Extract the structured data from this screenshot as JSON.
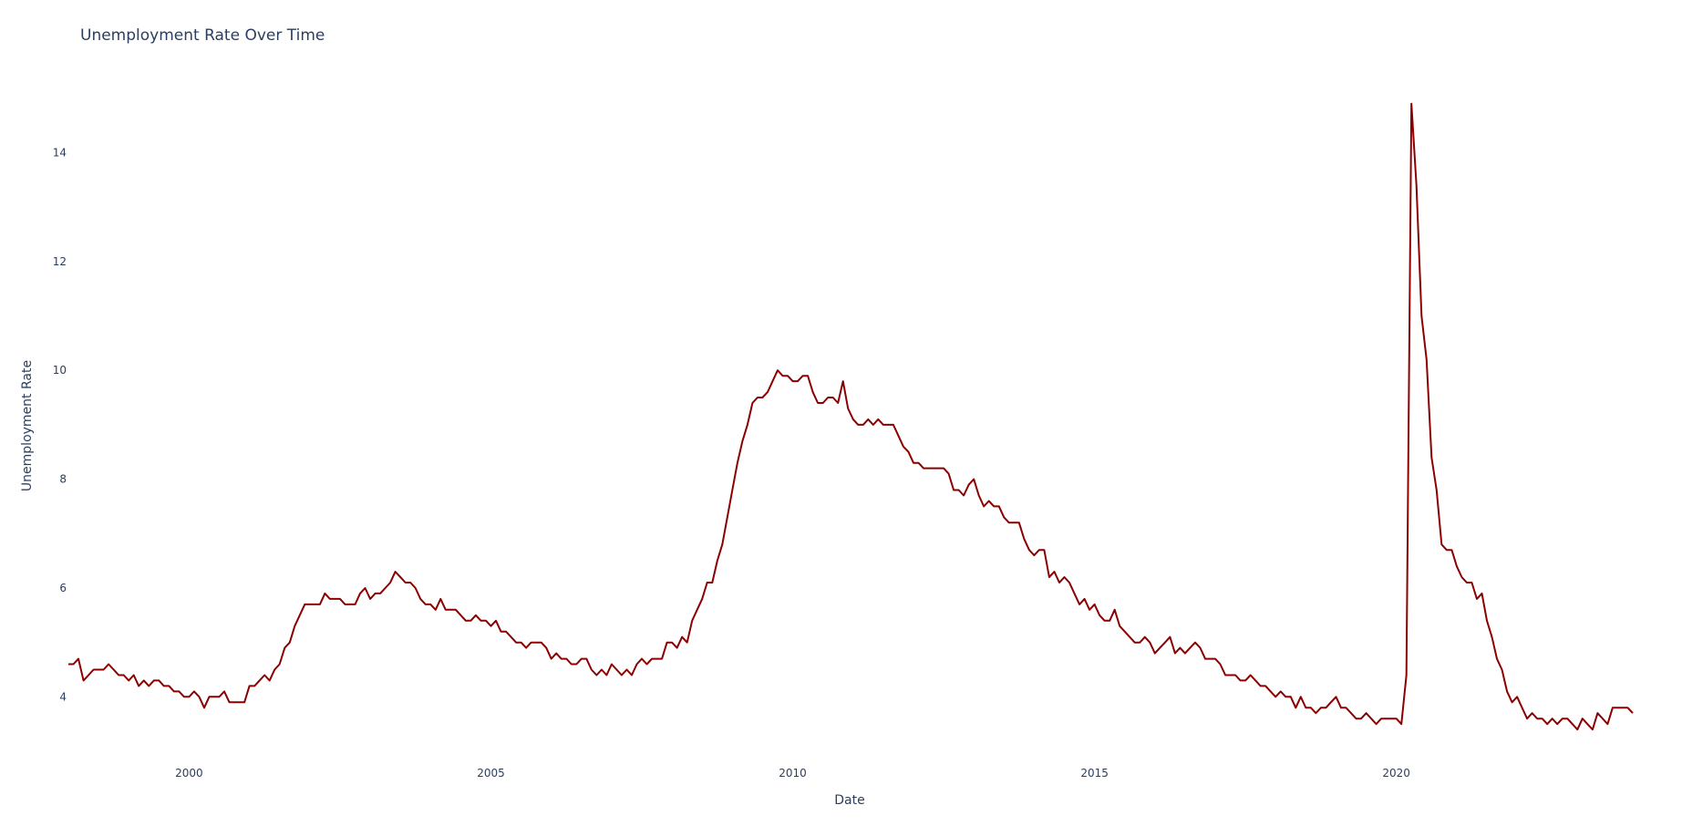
{
  "chart_data": {
    "type": "line",
    "title": "Unemployment Rate Over Time",
    "xlabel": "Date",
    "ylabel": "Unemployment Rate",
    "x_range": [
      "1998-01",
      "2023-12"
    ],
    "ylim": [
      2.9,
      15.8
    ],
    "x_ticks": [
      "2000",
      "2005",
      "2010",
      "2015",
      "2020"
    ],
    "y_ticks": [
      "4",
      "6",
      "8",
      "10",
      "12",
      "14"
    ],
    "grid": false,
    "line_color": "#8b0000",
    "series": [
      {
        "x": [
          "1998-01",
          "1998-02",
          "1998-03",
          "1998-04",
          "1998-05",
          "1998-06",
          "1998-07",
          "1998-08",
          "1998-09",
          "1998-10",
          "1998-11",
          "1998-12",
          "1999-01",
          "1999-02",
          "1999-03",
          "1999-04",
          "1999-05",
          "1999-06",
          "1999-07",
          "1999-08",
          "1999-09",
          "1999-10",
          "1999-11",
          "1999-12",
          "2000-01",
          "2000-02",
          "2000-03",
          "2000-04",
          "2000-05",
          "2000-06",
          "2000-07",
          "2000-08",
          "2000-09",
          "2000-10",
          "2000-11",
          "2000-12",
          "2001-01",
          "2001-02",
          "2001-03",
          "2001-04",
          "2001-05",
          "2001-06",
          "2001-07",
          "2001-08",
          "2001-09",
          "2001-10",
          "2001-11",
          "2001-12",
          "2002-01",
          "2002-02",
          "2002-03",
          "2002-04",
          "2002-05",
          "2002-06",
          "2002-07",
          "2002-08",
          "2002-09",
          "2002-10",
          "2002-11",
          "2002-12",
          "2003-01",
          "2003-02",
          "2003-03",
          "2003-04",
          "2003-05",
          "2003-06",
          "2003-07",
          "2003-08",
          "2003-09",
          "2003-10",
          "2003-11",
          "2003-12",
          "2004-01",
          "2004-02",
          "2004-03",
          "2004-04",
          "2004-05",
          "2004-06",
          "2004-07",
          "2004-08",
          "2004-09",
          "2004-10",
          "2004-11",
          "2004-12",
          "2005-01",
          "2005-02",
          "2005-03",
          "2005-04",
          "2005-05",
          "2005-06",
          "2005-07",
          "2005-08",
          "2005-09",
          "2005-10",
          "2005-11",
          "2005-12",
          "2006-01",
          "2006-02",
          "2006-03",
          "2006-04",
          "2006-05",
          "2006-06",
          "2006-07",
          "2006-08",
          "2006-09",
          "2006-10",
          "2006-11",
          "2006-12",
          "2007-01",
          "2007-02",
          "2007-03",
          "2007-04",
          "2007-05",
          "2007-06",
          "2007-07",
          "2007-08",
          "2007-09",
          "2007-10",
          "2007-11",
          "2007-12",
          "2008-01",
          "2008-02",
          "2008-03",
          "2008-04",
          "2008-05",
          "2008-06",
          "2008-07",
          "2008-08",
          "2008-09",
          "2008-10",
          "2008-11",
          "2008-12",
          "2009-01",
          "2009-02",
          "2009-03",
          "2009-04",
          "2009-05",
          "2009-06",
          "2009-07",
          "2009-08",
          "2009-09",
          "2009-10",
          "2009-11",
          "2009-12",
          "2010-01",
          "2010-02",
          "2010-03",
          "2010-04",
          "2010-05",
          "2010-06",
          "2010-07",
          "2010-08",
          "2010-09",
          "2010-10",
          "2010-11",
          "2010-12",
          "2011-01",
          "2011-02",
          "2011-03",
          "2011-04",
          "2011-05",
          "2011-06",
          "2011-07",
          "2011-08",
          "2011-09",
          "2011-10",
          "2011-11",
          "2011-12",
          "2012-01",
          "2012-02",
          "2012-03",
          "2012-04",
          "2012-05",
          "2012-06",
          "2012-07",
          "2012-08",
          "2012-09",
          "2012-10",
          "2012-11",
          "2012-12",
          "2013-01",
          "2013-02",
          "2013-03",
          "2013-04",
          "2013-05",
          "2013-06",
          "2013-07",
          "2013-08",
          "2013-09",
          "2013-10",
          "2013-11",
          "2013-12",
          "2014-01",
          "2014-02",
          "2014-03",
          "2014-04",
          "2014-05",
          "2014-06",
          "2014-07",
          "2014-08",
          "2014-09",
          "2014-10",
          "2014-11",
          "2014-12",
          "2015-01",
          "2015-02",
          "2015-03",
          "2015-04",
          "2015-05",
          "2015-06",
          "2015-07",
          "2015-08",
          "2015-09",
          "2015-10",
          "2015-11",
          "2015-12",
          "2016-01",
          "2016-02",
          "2016-03",
          "2016-04",
          "2016-05",
          "2016-06",
          "2016-07",
          "2016-08",
          "2016-09",
          "2016-10",
          "2016-11",
          "2016-12",
          "2017-01",
          "2017-02",
          "2017-03",
          "2017-04",
          "2017-05",
          "2017-06",
          "2017-07",
          "2017-08",
          "2017-09",
          "2017-10",
          "2017-11",
          "2017-12",
          "2018-01",
          "2018-02",
          "2018-03",
          "2018-04",
          "2018-05",
          "2018-06",
          "2018-07",
          "2018-08",
          "2018-09",
          "2018-10",
          "2018-11",
          "2018-12",
          "2019-01",
          "2019-02",
          "2019-03",
          "2019-04",
          "2019-05",
          "2019-06",
          "2019-07",
          "2019-08",
          "2019-09",
          "2019-10",
          "2019-11",
          "2019-12",
          "2020-01",
          "2020-02",
          "2020-03",
          "2020-04",
          "2020-05",
          "2020-06",
          "2020-07",
          "2020-08",
          "2020-09",
          "2020-10",
          "2020-11",
          "2020-12",
          "2021-01",
          "2021-02",
          "2021-03",
          "2021-04",
          "2021-05",
          "2021-06",
          "2021-07",
          "2021-08",
          "2021-09",
          "2021-10",
          "2021-11",
          "2021-12",
          "2022-01",
          "2022-02",
          "2022-03",
          "2022-04",
          "2022-05",
          "2022-06",
          "2022-07",
          "2022-08",
          "2022-09",
          "2022-10",
          "2022-11",
          "2022-12",
          "2023-01",
          "2023-02",
          "2023-03",
          "2023-04",
          "2023-05",
          "2023-06",
          "2023-07",
          "2023-08",
          "2023-09",
          "2023-10",
          "2023-11",
          "2023-12"
        ],
        "values": [
          4.6,
          4.6,
          4.7,
          4.3,
          4.4,
          4.5,
          4.5,
          4.5,
          4.6,
          4.5,
          4.4,
          4.4,
          4.3,
          4.4,
          4.2,
          4.3,
          4.2,
          4.3,
          4.3,
          4.2,
          4.2,
          4.1,
          4.1,
          4.0,
          4.0,
          4.1,
          4.0,
          3.8,
          4.0,
          4.0,
          4.0,
          4.1,
          3.9,
          3.9,
          3.9,
          3.9,
          4.2,
          4.2,
          4.3,
          4.4,
          4.3,
          4.5,
          4.6,
          4.9,
          5.0,
          5.3,
          5.5,
          5.7,
          5.7,
          5.7,
          5.7,
          5.9,
          5.8,
          5.8,
          5.8,
          5.7,
          5.7,
          5.7,
          5.9,
          6.0,
          5.8,
          5.9,
          5.9,
          6.0,
          6.1,
          6.3,
          6.2,
          6.1,
          6.1,
          6.0,
          5.8,
          5.7,
          5.7,
          5.6,
          5.8,
          5.6,
          5.6,
          5.6,
          5.5,
          5.4,
          5.4,
          5.5,
          5.4,
          5.4,
          5.3,
          5.4,
          5.2,
          5.2,
          5.1,
          5.0,
          5.0,
          4.9,
          5.0,
          5.0,
          5.0,
          4.9,
          4.7,
          4.8,
          4.7,
          4.7,
          4.6,
          4.6,
          4.7,
          4.7,
          4.5,
          4.4,
          4.5,
          4.4,
          4.6,
          4.5,
          4.4,
          4.5,
          4.4,
          4.6,
          4.7,
          4.6,
          4.7,
          4.7,
          4.7,
          5.0,
          5.0,
          4.9,
          5.1,
          5.0,
          5.4,
          5.6,
          5.8,
          6.1,
          6.1,
          6.5,
          6.8,
          7.3,
          7.8,
          8.3,
          8.7,
          9.0,
          9.4,
          9.5,
          9.5,
          9.6,
          9.8,
          10.0,
          9.9,
          9.9,
          9.8,
          9.8,
          9.9,
          9.9,
          9.6,
          9.4,
          9.4,
          9.5,
          9.5,
          9.4,
          9.8,
          9.3,
          9.1,
          9.0,
          9.0,
          9.1,
          9.0,
          9.1,
          9.0,
          9.0,
          9.0,
          8.8,
          8.6,
          8.5,
          8.3,
          8.3,
          8.2,
          8.2,
          8.2,
          8.2,
          8.2,
          8.1,
          7.8,
          7.8,
          7.7,
          7.9,
          8.0,
          7.7,
          7.5,
          7.6,
          7.5,
          7.5,
          7.3,
          7.2,
          7.2,
          7.2,
          6.9,
          6.7,
          6.6,
          6.7,
          6.7,
          6.2,
          6.3,
          6.1,
          6.2,
          6.1,
          5.9,
          5.7,
          5.8,
          5.6,
          5.7,
          5.5,
          5.4,
          5.4,
          5.6,
          5.3,
          5.2,
          5.1,
          5.0,
          5.0,
          5.1,
          5.0,
          4.8,
          4.9,
          5.0,
          5.1,
          4.8,
          4.9,
          4.8,
          4.9,
          5.0,
          4.9,
          4.7,
          4.7,
          4.7,
          4.6,
          4.4,
          4.4,
          4.4,
          4.3,
          4.3,
          4.4,
          4.3,
          4.2,
          4.2,
          4.1,
          4.0,
          4.1,
          4.0,
          4.0,
          3.8,
          4.0,
          3.8,
          3.8,
          3.7,
          3.8,
          3.8,
          3.9,
          4.0,
          3.8,
          3.8,
          3.7,
          3.6,
          3.6,
          3.7,
          3.6,
          3.5,
          3.6,
          3.6,
          3.6,
          3.6,
          3.5,
          4.4,
          14.9,
          13.4,
          11.0,
          10.2,
          8.4,
          7.8,
          6.8,
          6.7,
          6.7,
          6.4,
          6.2,
          6.1,
          6.1,
          5.8,
          5.9,
          5.4,
          5.1,
          4.7,
          4.5,
          4.1,
          3.9,
          4.0,
          3.8,
          3.6,
          3.7,
          3.6,
          3.6,
          3.5,
          3.6,
          3.5,
          3.6,
          3.6,
          3.5,
          3.4,
          3.6,
          3.5,
          3.4,
          3.7,
          3.6,
          3.5,
          3.8,
          3.8,
          3.8,
          3.8,
          3.7
        ]
      }
    ]
  }
}
